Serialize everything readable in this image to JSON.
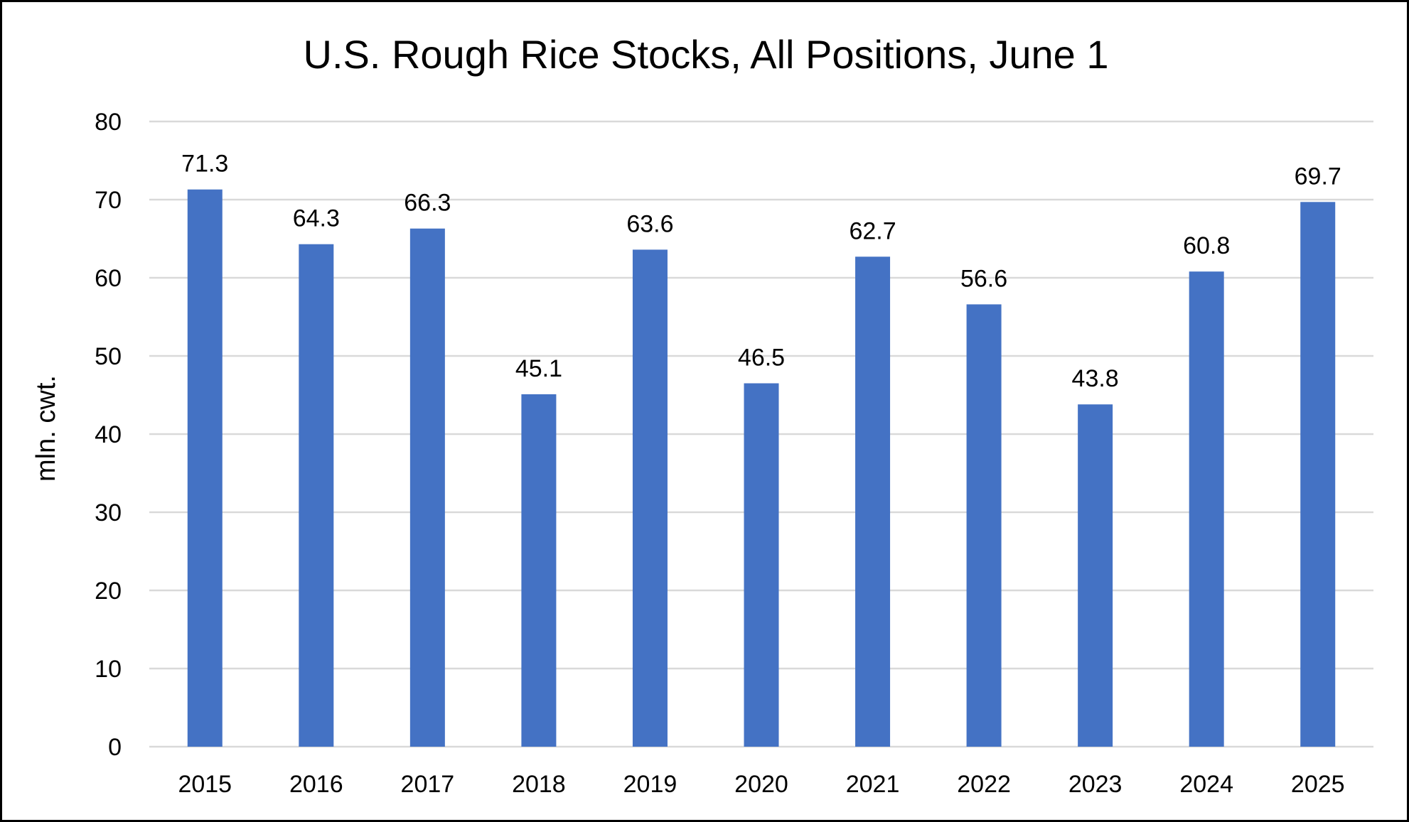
{
  "chart_data": {
    "type": "bar",
    "title": "U.S. Rough Rice Stocks, All Positions, June 1",
    "xlabel": "",
    "ylabel": "mln. cwt.",
    "ylim": [
      0,
      80
    ],
    "yticks": [
      0,
      10,
      20,
      30,
      40,
      50,
      60,
      70,
      80
    ],
    "grid": true,
    "legend": "none",
    "categories": [
      "2015",
      "2016",
      "2017",
      "2018",
      "2019",
      "2020",
      "2021",
      "2022",
      "2023",
      "2024",
      "2025"
    ],
    "values": [
      71.3,
      64.3,
      66.3,
      45.1,
      63.6,
      46.5,
      62.7,
      56.6,
      43.8,
      60.8,
      69.7
    ],
    "data_labels": [
      "71.3",
      "64.3",
      "66.3",
      "45.1",
      "63.6",
      "46.5",
      "62.7",
      "56.6",
      "43.8",
      "60.8",
      "69.7"
    ],
    "colors": {
      "bar": "#4472C4",
      "grid": "#D9D9D9",
      "text": "#000000"
    }
  }
}
